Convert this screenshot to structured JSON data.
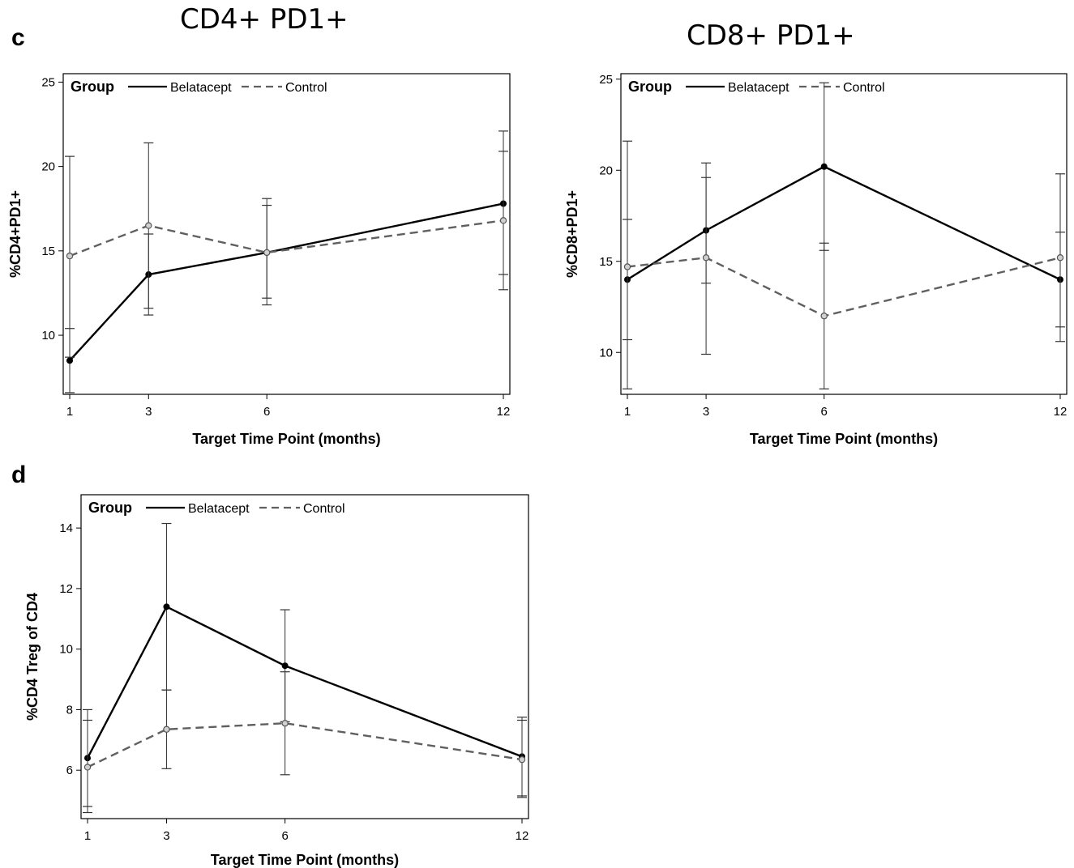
{
  "figure": {
    "panel_c_label": "c",
    "panel_d_label": "d"
  },
  "legend": {
    "title": "Group",
    "belatacept": "Belatacept",
    "control": "Control"
  },
  "colors": {
    "belatacept": "#000000",
    "control": "#606060",
    "error_bars": "#333333"
  },
  "chart_data": [
    {
      "type": "line",
      "title": "CD4+ PD1+",
      "xlabel": "Target Time Point (months)",
      "ylabel": "%CD4+PD1+",
      "x": [
        1,
        3,
        6,
        12
      ],
      "xticks": [
        1,
        3,
        6,
        12
      ],
      "ylim": [
        6.5,
        25.5
      ],
      "yticks": [
        10,
        15,
        20,
        25
      ],
      "legend_position": "top-left",
      "series": [
        {
          "name": "Belatacept",
          "style": "solid",
          "y": [
            8.5,
            13.6,
            14.9,
            17.8
          ],
          "lower": [
            6.6,
            11.2,
            12.2,
            13.6
          ],
          "upper": [
            10.4,
            16.0,
            17.7,
            22.1
          ]
        },
        {
          "name": "Control",
          "style": "dashed",
          "y": [
            14.7,
            16.5,
            14.9,
            16.8
          ],
          "lower": [
            8.7,
            11.6,
            11.8,
            12.7
          ],
          "upper": [
            20.6,
            21.4,
            18.1,
            20.9
          ]
        }
      ]
    },
    {
      "type": "line",
      "title": "CD8+ PD1+",
      "xlabel": "Target Time Point (months)",
      "ylabel": "%CD8+PD1+",
      "x": [
        1,
        3,
        6,
        12
      ],
      "xticks": [
        1,
        3,
        6,
        12
      ],
      "ylim": [
        7.7,
        25.3
      ],
      "yticks": [
        10,
        15,
        20,
        25
      ],
      "legend_position": "top-left",
      "series": [
        {
          "name": "Belatacept",
          "style": "solid",
          "y": [
            14.0,
            16.7,
            20.2,
            14.0
          ],
          "lower": [
            10.7,
            13.8,
            15.6,
            11.4
          ],
          "upper": [
            17.3,
            19.6,
            24.8,
            16.6
          ]
        },
        {
          "name": "Control",
          "style": "dashed",
          "y": [
            14.7,
            15.2,
            12.0,
            15.2
          ],
          "lower": [
            8.0,
            9.9,
            8.0,
            10.6
          ],
          "upper": [
            21.6,
            20.4,
            16.0,
            19.8
          ]
        }
      ]
    },
    {
      "type": "line",
      "title": "",
      "xlabel": "Target Time Point (months)",
      "ylabel": "%CD4 Treg of CD4",
      "x": [
        1,
        3,
        6,
        12
      ],
      "xticks": [
        1,
        3,
        6,
        12
      ],
      "ylim": [
        4.4,
        15.1
      ],
      "yticks": [
        6,
        8,
        10,
        12,
        14
      ],
      "legend_position": "top-left",
      "series": [
        {
          "name": "Belatacept",
          "style": "solid",
          "y": [
            6.4,
            11.4,
            9.45,
            6.45
          ],
          "lower": [
            4.8,
            8.65,
            7.6,
            5.15
          ],
          "upper": [
            8.0,
            14.15,
            11.3,
            7.75
          ]
        },
        {
          "name": "Control",
          "style": "dashed",
          "y": [
            6.1,
            7.35,
            7.55,
            6.35
          ],
          "lower": [
            4.6,
            6.05,
            5.85,
            5.1
          ],
          "upper": [
            7.65,
            8.65,
            9.25,
            7.65
          ]
        }
      ]
    }
  ]
}
